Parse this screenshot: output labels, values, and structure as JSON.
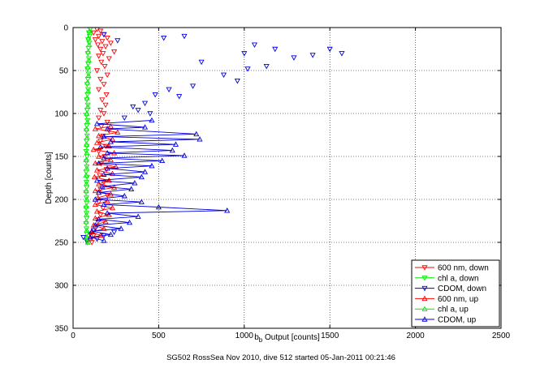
{
  "chart_data": {
    "type": "scatter",
    "caption": "SG502 RossSea Nov 2010, dive 512 started 05-Jan-2011 00:21:46",
    "xlabel": "b_b Output [counts]",
    "xlabel_main": "b",
    "xlabel_sub": "b",
    "xlabel_rest": " Output [counts]",
    "ylabel": "Depth [counts]",
    "xlim": [
      0,
      2500
    ],
    "ylim": [
      0,
      350
    ],
    "y_reversed": true,
    "grid": true,
    "legend_position": "lower-right",
    "xticks": [
      0,
      500,
      1000,
      1500,
      2000,
      2500
    ],
    "yticks": [
      0,
      50,
      100,
      150,
      200,
      250,
      300,
      350
    ],
    "xtick_labels": [
      "0",
      "500",
      "1000",
      "1500",
      "2000",
      "2500"
    ],
    "ytick_labels": [
      "0",
      "50",
      "100",
      "150",
      "200",
      "250",
      "300",
      "350"
    ],
    "series": [
      {
        "name": "600 nm, down",
        "color": "#ff0000",
        "marker": "triangle-down",
        "line": false,
        "points": [
          [
            140,
            2
          ],
          [
            160,
            4
          ],
          [
            120,
            6
          ],
          [
            180,
            8
          ],
          [
            150,
            10
          ],
          [
            200,
            12
          ],
          [
            130,
            14
          ],
          [
            170,
            16
          ],
          [
            220,
            18
          ],
          [
            145,
            20
          ],
          [
            190,
            22
          ],
          [
            160,
            25
          ],
          [
            240,
            28
          ],
          [
            175,
            30
          ],
          [
            150,
            33
          ],
          [
            210,
            36
          ],
          [
            165,
            40
          ],
          [
            185,
            45
          ],
          [
            140,
            50
          ],
          [
            200,
            55
          ],
          [
            160,
            60
          ],
          [
            180,
            66
          ],
          [
            150,
            72
          ],
          [
            195,
            78
          ],
          [
            170,
            84
          ],
          [
            190,
            90
          ],
          [
            160,
            96
          ],
          [
            180,
            100
          ],
          [
            150,
            105
          ],
          [
            200,
            110
          ],
          [
            165,
            115
          ],
          [
            210,
            120
          ],
          [
            175,
            126
          ],
          [
            160,
            132
          ],
          [
            190,
            138
          ],
          [
            150,
            144
          ],
          [
            185,
            150
          ],
          [
            165,
            158
          ],
          [
            195,
            165
          ],
          [
            155,
            172
          ],
          [
            180,
            180
          ],
          [
            160,
            188
          ],
          [
            200,
            195
          ],
          [
            150,
            203
          ],
          [
            175,
            210
          ],
          [
            160,
            218
          ],
          [
            145,
            226
          ],
          [
            130,
            234
          ],
          [
            120,
            242
          ],
          [
            110,
            250
          ]
        ]
      },
      {
        "name": "chl a, down",
        "color": "#00ee00",
        "marker": "triangle-down",
        "line": false,
        "points": [
          [
            100,
            2
          ],
          [
            92,
            6
          ],
          [
            96,
            10
          ],
          [
            88,
            14
          ],
          [
            94,
            18
          ],
          [
            90,
            24
          ],
          [
            86,
            30
          ],
          [
            92,
            36
          ],
          [
            88,
            42
          ],
          [
            84,
            48
          ],
          [
            90,
            54
          ],
          [
            86,
            60
          ],
          [
            82,
            66
          ],
          [
            88,
            72
          ],
          [
            84,
            78
          ],
          [
            80,
            84
          ],
          [
            86,
            90
          ],
          [
            82,
            96
          ],
          [
            78,
            102
          ],
          [
            84,
            108
          ],
          [
            80,
            114
          ],
          [
            78,
            120
          ],
          [
            82,
            126
          ],
          [
            78,
            132
          ],
          [
            80,
            138
          ],
          [
            76,
            144
          ],
          [
            82,
            150
          ],
          [
            78,
            156
          ],
          [
            80,
            162
          ],
          [
            76,
            168
          ],
          [
            82,
            174
          ],
          [
            78,
            180
          ],
          [
            80,
            186
          ],
          [
            76,
            192
          ],
          [
            78,
            198
          ],
          [
            80,
            204
          ],
          [
            76,
            210
          ],
          [
            78,
            216
          ],
          [
            80,
            222
          ],
          [
            76,
            228
          ],
          [
            78,
            234
          ],
          [
            80,
            240
          ],
          [
            82,
            246
          ],
          [
            84,
            250
          ]
        ]
      },
      {
        "name": "CDOM, down",
        "color": "#0000dd",
        "marker": "triangle-down",
        "line": false,
        "points": [
          [
            180,
            8
          ],
          [
            260,
            15
          ],
          [
            530,
            12
          ],
          [
            650,
            10
          ],
          [
            1060,
            20
          ],
          [
            1000,
            30
          ],
          [
            1180,
            25
          ],
          [
            1290,
            35
          ],
          [
            1400,
            32
          ],
          [
            1500,
            25
          ],
          [
            1570,
            30
          ],
          [
            1020,
            48
          ],
          [
            1130,
            45
          ],
          [
            750,
            40
          ],
          [
            880,
            55
          ],
          [
            960,
            62
          ],
          [
            700,
            68
          ],
          [
            560,
            72
          ],
          [
            620,
            80
          ],
          [
            480,
            78
          ],
          [
            420,
            88
          ],
          [
            350,
            92
          ],
          [
            450,
            100
          ],
          [
            300,
            105
          ],
          [
            380,
            96
          ],
          [
            240,
            238
          ],
          [
            180,
            242
          ],
          [
            140,
            246
          ],
          [
            100,
            240
          ],
          [
            60,
            244
          ],
          [
            80,
            248
          ],
          [
            120,
            236
          ]
        ]
      },
      {
        "name": "600 nm, up",
        "color": "#ff0000",
        "marker": "triangle-up",
        "line": true,
        "points": [
          [
            220,
            115
          ],
          [
            130,
            118
          ],
          [
            260,
            122
          ],
          [
            150,
            126
          ],
          [
            230,
            130
          ],
          [
            140,
            134
          ],
          [
            210,
            138
          ],
          [
            120,
            142
          ],
          [
            240,
            146
          ],
          [
            150,
            150
          ],
          [
            220,
            154
          ],
          [
            130,
            158
          ],
          [
            250,
            162
          ],
          [
            140,
            166
          ],
          [
            230,
            170
          ],
          [
            125,
            174
          ],
          [
            210,
            178
          ],
          [
            150,
            182
          ],
          [
            240,
            186
          ],
          [
            130,
            190
          ],
          [
            220,
            194
          ],
          [
            145,
            198
          ],
          [
            200,
            202
          ],
          [
            130,
            206
          ],
          [
            230,
            210
          ],
          [
            140,
            214
          ],
          [
            210,
            218
          ],
          [
            130,
            222
          ],
          [
            190,
            226
          ],
          [
            120,
            230
          ],
          [
            180,
            234
          ],
          [
            110,
            238
          ],
          [
            160,
            242
          ],
          [
            100,
            246
          ]
        ]
      },
      {
        "name": "chl a, up",
        "color": "#00ee00",
        "marker": "triangle-up",
        "line": false,
        "points": [
          [
            96,
            4
          ],
          [
            90,
            12
          ],
          [
            94,
            20
          ],
          [
            88,
            28
          ],
          [
            92,
            38
          ],
          [
            86,
            46
          ],
          [
            90,
            56
          ],
          [
            84,
            64
          ],
          [
            88,
            74
          ],
          [
            82,
            82
          ],
          [
            86,
            92
          ],
          [
            80,
            100
          ],
          [
            84,
            110
          ],
          [
            78,
            118
          ],
          [
            82,
            128
          ],
          [
            78,
            136
          ],
          [
            80,
            146
          ],
          [
            76,
            154
          ],
          [
            80,
            164
          ],
          [
            76,
            172
          ],
          [
            78,
            182
          ],
          [
            76,
            190
          ],
          [
            80,
            200
          ],
          [
            76,
            208
          ],
          [
            78,
            218
          ],
          [
            76,
            226
          ],
          [
            80,
            236
          ],
          [
            82,
            244
          ],
          [
            86,
            250
          ]
        ]
      },
      {
        "name": "CDOM, up",
        "color": "#0000dd",
        "marker": "triangle-up",
        "line": true,
        "points": [
          [
            460,
            108
          ],
          [
            140,
            112
          ],
          [
            420,
            116
          ],
          [
            200,
            118
          ],
          [
            720,
            124
          ],
          [
            180,
            127
          ],
          [
            740,
            130
          ],
          [
            220,
            133
          ],
          [
            600,
            136
          ],
          [
            160,
            139
          ],
          [
            580,
            143
          ],
          [
            200,
            146
          ],
          [
            650,
            149
          ],
          [
            180,
            152
          ],
          [
            520,
            155
          ],
          [
            150,
            158
          ],
          [
            460,
            161
          ],
          [
            200,
            164
          ],
          [
            420,
            168
          ],
          [
            180,
            171
          ],
          [
            400,
            174
          ],
          [
            140,
            178
          ],
          [
            360,
            181
          ],
          [
            170,
            185
          ],
          [
            340,
            188
          ],
          [
            150,
            192
          ],
          [
            300,
            196
          ],
          [
            130,
            200
          ],
          [
            400,
            203
          ],
          [
            180,
            206
          ],
          [
            500,
            209
          ],
          [
            900,
            213
          ],
          [
            200,
            216
          ],
          [
            380,
            220
          ],
          [
            150,
            223
          ],
          [
            330,
            227
          ],
          [
            130,
            230
          ],
          [
            280,
            234
          ],
          [
            110,
            237
          ],
          [
            220,
            241
          ],
          [
            100,
            244
          ],
          [
            180,
            248
          ]
        ]
      }
    ]
  }
}
